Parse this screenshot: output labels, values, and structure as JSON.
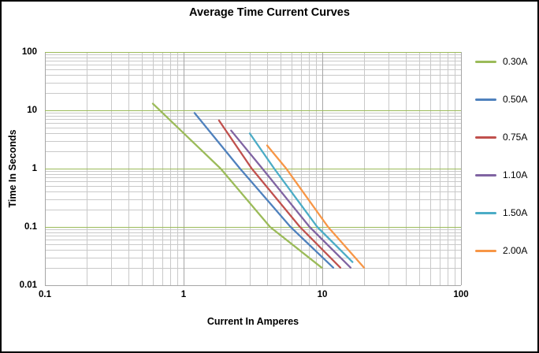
{
  "page": {
    "background": "#FFFFFF",
    "frame_border": "#000000"
  },
  "chart_data": {
    "type": "line",
    "title": "Average Time Current Curves",
    "xlabel": "Current In Amperes",
    "ylabel": "Time In Seconds",
    "x_scale": "log",
    "y_scale": "log",
    "xlim": [
      0.1,
      100
    ],
    "ylim": [
      0.01,
      100
    ],
    "x_ticks": [
      {
        "label": "0.1",
        "value": 0.1
      },
      {
        "label": "1",
        "value": 1
      },
      {
        "label": "10",
        "value": 10
      },
      {
        "label": "100",
        "value": 100
      }
    ],
    "y_ticks": [
      {
        "label": "100",
        "value": 100
      },
      {
        "label": "10",
        "value": 10
      },
      {
        "label": "1",
        "value": 1
      },
      {
        "label": "0.1",
        "value": 0.1
      },
      {
        "label": "0.01",
        "value": 0.01
      }
    ],
    "grid": {
      "on": true,
      "major_h_color": "#9BBB59",
      "major_v_color": "#A6A6A6",
      "minor_color": "#C9C9C9",
      "axis_color": "#A6A6A6"
    },
    "legend_position": "right",
    "series": [
      {
        "name": "0.30A",
        "color": "#9BBB59",
        "points": [
          [
            0.6,
            13
          ],
          [
            1.85,
            1.0
          ],
          [
            4.2,
            0.1
          ],
          [
            9.9,
            0.02
          ]
        ]
      },
      {
        "name": "0.50A",
        "color": "#4F81BD",
        "points": [
          [
            1.2,
            9.0
          ],
          [
            2.55,
            1.0
          ],
          [
            5.9,
            0.1
          ],
          [
            12,
            0.02
          ]
        ]
      },
      {
        "name": "0.75A",
        "color": "#C0504D",
        "points": [
          [
            1.8,
            6.7
          ],
          [
            3.1,
            1.0
          ],
          [
            6.9,
            0.1
          ],
          [
            13.5,
            0.02
          ]
        ]
      },
      {
        "name": "1.10A",
        "color": "#8064A2",
        "points": [
          [
            2.2,
            4.5
          ],
          [
            3.7,
            1.0
          ],
          [
            8.1,
            0.1
          ],
          [
            16,
            0.02
          ]
        ]
      },
      {
        "name": "1.50A",
        "color": "#4BACC6",
        "points": [
          [
            3.0,
            4.0
          ],
          [
            4.5,
            1.0
          ],
          [
            9.2,
            0.1
          ],
          [
            16.5,
            0.025
          ]
        ]
      },
      {
        "name": "2.00A",
        "color": "#F79646",
        "points": [
          [
            4.0,
            2.5
          ],
          [
            5.5,
            1.0
          ],
          [
            11,
            0.1
          ],
          [
            20,
            0.02
          ]
        ]
      }
    ]
  }
}
